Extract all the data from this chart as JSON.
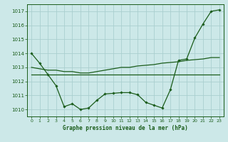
{
  "title": "Graphe pression niveau de la mer (hPa)",
  "bg_color": "#cce8e8",
  "grid_color": "#aacfcf",
  "line_color": "#1a5c1a",
  "marker_color": "#1a5c1a",
  "xlim": [
    -0.5,
    23.5
  ],
  "ylim": [
    1009.5,
    1017.5
  ],
  "yticks": [
    1010,
    1011,
    1012,
    1013,
    1014,
    1015,
    1016,
    1017
  ],
  "xticks": [
    0,
    1,
    2,
    3,
    4,
    5,
    6,
    7,
    8,
    9,
    10,
    11,
    12,
    13,
    14,
    15,
    16,
    17,
    18,
    19,
    20,
    21,
    22,
    23
  ],
  "series1_x": [
    0,
    1,
    2,
    3,
    4,
    5,
    6,
    7,
    8,
    9,
    10,
    11,
    12,
    13,
    14,
    15,
    16,
    17,
    18,
    19,
    20,
    21,
    22,
    23
  ],
  "series1_y": [
    1014.0,
    1013.3,
    1012.5,
    1011.7,
    1010.2,
    1010.4,
    1010.0,
    1010.1,
    1010.65,
    1011.1,
    1011.15,
    1011.2,
    1011.2,
    1011.05,
    1010.5,
    1010.3,
    1010.1,
    1011.4,
    1013.5,
    1013.6,
    1015.1,
    1016.1,
    1017.0,
    1017.1
  ],
  "series2_x": [
    0,
    1,
    2,
    3,
    4,
    5,
    6,
    7,
    8,
    9,
    10,
    11,
    12,
    13,
    14,
    15,
    16,
    17,
    18,
    19,
    20,
    21,
    22,
    23
  ],
  "series2_y": [
    1012.5,
    1012.5,
    1012.5,
    1012.5,
    1012.5,
    1012.5,
    1012.5,
    1012.5,
    1012.5,
    1012.5,
    1012.5,
    1012.5,
    1012.5,
    1012.5,
    1012.5,
    1012.5,
    1012.5,
    1012.5,
    1012.5,
    1012.5,
    1012.5,
    1012.5,
    1012.5,
    1012.5
  ],
  "series3_x": [
    0,
    1,
    2,
    3,
    4,
    5,
    6,
    7,
    8,
    9,
    10,
    11,
    12,
    13,
    14,
    15,
    16,
    17,
    18,
    19,
    20,
    21,
    22,
    23
  ],
  "series3_y": [
    1013.0,
    1012.9,
    1012.8,
    1012.8,
    1012.7,
    1012.7,
    1012.6,
    1012.6,
    1012.7,
    1012.8,
    1012.9,
    1013.0,
    1013.0,
    1013.1,
    1013.15,
    1013.2,
    1013.3,
    1013.35,
    1013.4,
    1013.5,
    1013.55,
    1013.6,
    1013.7,
    1013.7
  ]
}
